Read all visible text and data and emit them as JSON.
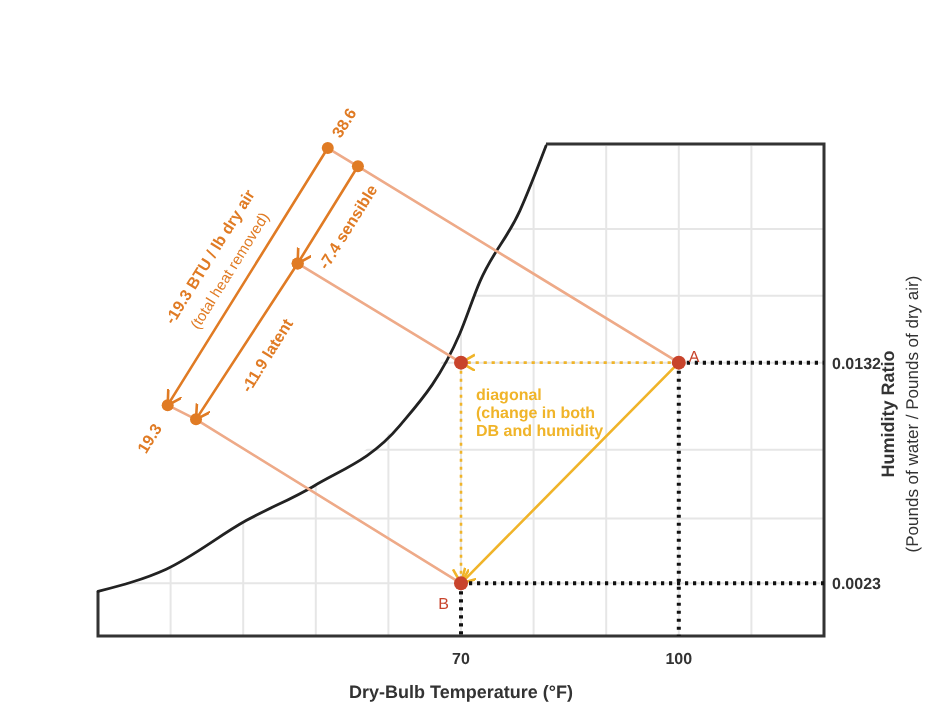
{
  "chart_data": {
    "type": "line",
    "xlabel": "Dry-Bulb Temperature (°F)",
    "ylabel": "Humidity Ratio\n(Pounds of water / Pounds of dry air)",
    "xlim": [
      20,
      120
    ],
    "ylim": [
      -0.0003,
      0.024
    ],
    "xticks": [
      {
        "value": 30,
        "label": null
      },
      {
        "value": 40,
        "label": null
      },
      {
        "value": 50,
        "label": null
      },
      {
        "value": 60,
        "label": null
      },
      70,
      {
        "value": 80,
        "label": null
      },
      {
        "value": 90,
        "label": null
      },
      100,
      {
        "value": 110,
        "label": null
      }
    ],
    "yticks": [
      0.0023,
      {
        "value": 0.0055,
        "label": null
      },
      {
        "value": 0.0089,
        "label": null
      },
      0.0132,
      {
        "value": 0.0165,
        "label": null
      },
      {
        "value": 0.0198,
        "label": null
      }
    ],
    "grid": true,
    "series": [
      {
        "color": "#222222",
        "x": [
          20,
          29.4,
          40.4,
          49.7,
          61.6,
          69.8,
          72.6,
          78.1,
          81.7
        ],
        "values": [
          0.0019,
          0.003,
          0.0054,
          0.0071,
          0.0101,
          0.0146,
          0.0172,
          0.0207,
          0.0239
        ]
      },
      {
        "type": "line",
        "color": "#eeaa88",
        "x": [
          55.8,
          100
        ],
        "values": [
          0.0229,
          0.0132
        ]
      },
      {
        "type": "line",
        "color": "#eeaa88",
        "x": [
          47.5,
          70
        ],
        "values": [
          0.0181,
          0.0132
        ]
      },
      {
        "type": "line",
        "color": "#eeaa88",
        "x": [
          33.5,
          70
        ],
        "values": [
          0.0104,
          0.0023
        ]
      },
      {
        "type": "line",
        "color": "#eeaa88",
        "x": [
          51.65,
          55.8
        ],
        "values": [
          0.0238,
          0.0229
        ]
      },
      {
        "type": "line",
        "color": "#eeaa88",
        "x": [
          29.6,
          33.5
        ],
        "values": [
          0.0111,
          0.0104
        ]
      },
      {
        "type": "line",
        "color": "#e07b24",
        "marker": "circle",
        "x": [
          51.65,
          29.6
        ],
        "values": [
          0.0238,
          0.0111
        ]
      },
      {
        "type": "line",
        "color": "#e07b24",
        "marker": "circle",
        "x": [
          55.8,
          47.5
        ],
        "values": [
          0.0229,
          0.0181
        ]
      },
      {
        "type": "line",
        "color": "#e07b24",
        "marker": "circle",
        "x": [
          47.5,
          33.5
        ],
        "values": [
          0.0181,
          0.0104
        ]
      },
      {
        "type": "line",
        "color": "#f0b429",
        "line_style": "dotted",
        "x": [
          100,
          70
        ],
        "values": [
          0.0132,
          0.0132
        ]
      },
      {
        "type": "line",
        "color": "#f0b429",
        "line_style": "dotted",
        "x": [
          70,
          70
        ],
        "values": [
          0.0132,
          0.0023
        ]
      },
      {
        "type": "line",
        "color": "#f0b429",
        "x": [
          100,
          70
        ],
        "values": [
          0.0132,
          0.0023
        ]
      },
      {
        "type": "line",
        "color": "#111111",
        "line_style": "dotted",
        "x": [
          100,
          120
        ],
        "values": [
          0.0132,
          0.0132
        ]
      },
      {
        "type": "line",
        "color": "#111111",
        "line_style": "dotted",
        "x": [
          100,
          100
        ],
        "values": [
          0.0132,
          -0.0003
        ]
      },
      {
        "type": "line",
        "color": "#111111",
        "line_style": "dotted",
        "x": [
          70,
          120
        ],
        "values": [
          0.0023,
          0.0023
        ]
      },
      {
        "type": "line",
        "color": "#111111",
        "line_style": "dotted",
        "x": [
          70,
          70
        ],
        "values": [
          0.0023,
          -0.0003
        ]
      },
      {
        "type": "scatter",
        "color": "#c8442c",
        "x": [
          100,
          70,
          70
        ],
        "values": [
          0.0132,
          0.0132,
          0.0023
        ]
      }
    ],
    "annotations": [
      {
        "text": "38.6",
        "x": 51.65,
        "y": 0.0238
      },
      {
        "text": "19.3",
        "x": 29.6,
        "y": 0.0111
      },
      {
        "text": "-19.3 BTU / lb dry air",
        "x": 40.6,
        "y": 0.01745
      },
      {
        "text": "(total heat removed)",
        "x": 40.6,
        "y": 0.01745
      },
      {
        "text": "-7.4 sensible",
        "x": 51.65,
        "y": 0.0205
      },
      {
        "text": "-11.9 latent",
        "x": 40.5,
        "y": 0.01425
      },
      "diagonal\n(change in both\nDB and humidity",
      {
        "text": "A",
        "x": 100,
        "y": 0.0132
      },
      {
        "text": "B",
        "x": 70,
        "y": 0.0023
      }
    ]
  }
}
